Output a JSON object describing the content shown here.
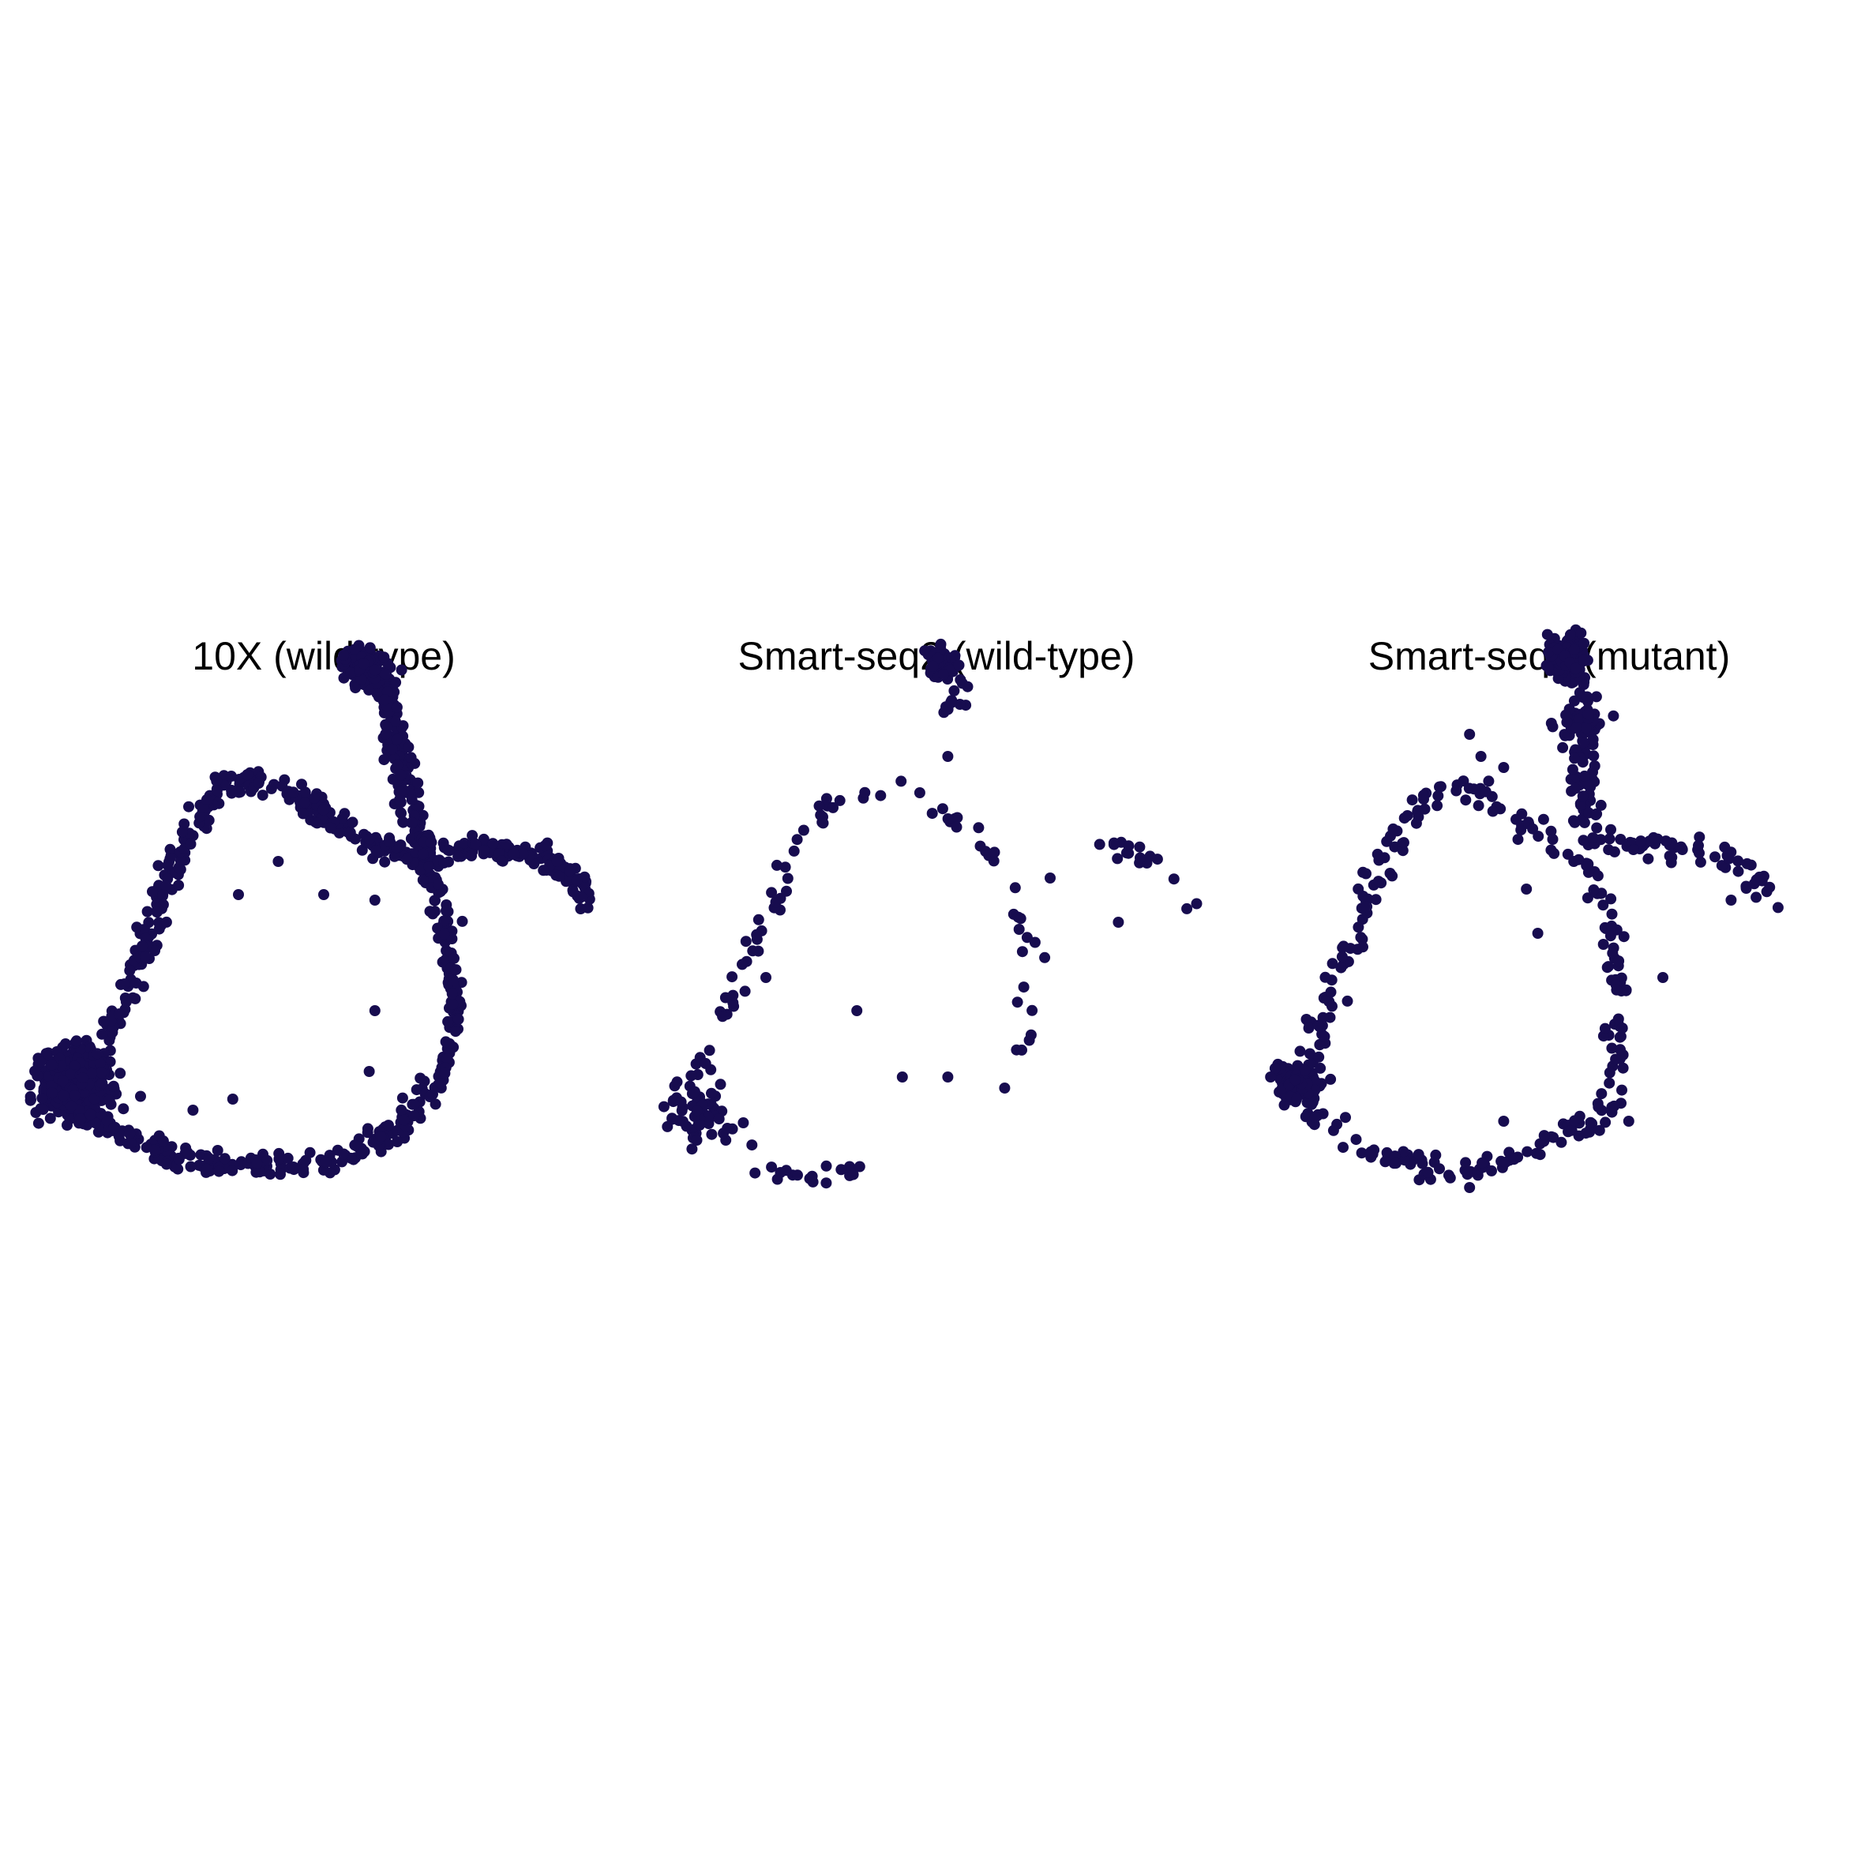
{
  "chart_data": [
    {
      "type": "scatter",
      "title": "10X (wild-type)",
      "xlim": [
        0,
        100
      ],
      "ylim": [
        0,
        100
      ],
      "grid": false,
      "axes_visible": false,
      "point_color": "#170c4f",
      "density": "high",
      "trajectory": {
        "loop": [
          [
            2,
            26
          ],
          [
            10,
            20
          ],
          [
            22,
            14
          ],
          [
            34,
            12
          ],
          [
            44,
            12
          ],
          [
            54,
            14
          ],
          [
            62,
            18
          ],
          [
            68,
            24
          ],
          [
            72,
            32
          ],
          [
            73,
            42
          ],
          [
            72,
            52
          ],
          [
            70,
            60
          ],
          [
            68,
            66
          ],
          [
            60,
            70
          ],
          [
            52,
            74
          ],
          [
            44,
            80
          ],
          [
            38,
            82
          ],
          [
            32,
            80
          ],
          [
            26,
            72
          ],
          [
            22,
            62
          ],
          [
            18,
            50
          ],
          [
            14,
            40
          ],
          [
            12,
            36
          ]
        ],
        "top_branch": [
          [
            54,
            104
          ],
          [
            59,
            103
          ],
          [
            61,
            98
          ],
          [
            62,
            90
          ],
          [
            64,
            82
          ],
          [
            66,
            74
          ],
          [
            68,
            68
          ]
        ],
        "right_branch": [
          [
            68,
            68
          ],
          [
            78,
            69
          ],
          [
            88,
            68
          ],
          [
            95,
            63
          ],
          [
            96,
            58
          ]
        ]
      },
      "clusters": [
        {
          "cx": 6,
          "cy": 27,
          "r": 5,
          "count": 520
        },
        {
          "cx": 57,
          "cy": 102,
          "r": 3,
          "count": 90
        }
      ],
      "outliers": [
        [
          35,
          61
        ],
        [
          50,
          61
        ],
        [
          59,
          60
        ],
        [
          59,
          40
        ],
        [
          58,
          29
        ],
        [
          17,
          45
        ],
        [
          34,
          24
        ],
        [
          27,
          22
        ],
        [
          42,
          67
        ]
      ]
    },
    {
      "type": "scatter",
      "title": "Smart-seq2 (wild-type)",
      "xlim": [
        0,
        100
      ],
      "ylim": [
        0,
        100
      ],
      "grid": false,
      "axes_visible": false,
      "point_color": "#170c4f",
      "density": "low",
      "trajectory": {
        "loop": [
          [
            6,
            24
          ],
          [
            12,
            18
          ],
          [
            20,
            12
          ],
          [
            28,
            10
          ],
          [
            34,
            10
          ],
          [
            36,
            12
          ]
        ],
        "left_arc": [
          [
            6,
            24
          ],
          [
            10,
            32
          ],
          [
            14,
            42
          ],
          [
            18,
            52
          ],
          [
            22,
            62
          ],
          [
            26,
            70
          ],
          [
            30,
            76
          ],
          [
            36,
            80
          ],
          [
            42,
            80
          ],
          [
            48,
            78
          ],
          [
            54,
            74
          ],
          [
            58,
            70
          ],
          [
            62,
            66
          ],
          [
            64,
            60
          ],
          [
            66,
            50
          ],
          [
            66,
            42
          ],
          [
            66,
            34
          ],
          [
            64,
            30
          ]
        ],
        "top_branch": [
          [
            48,
            104
          ],
          [
            52,
            102
          ],
          [
            54,
            98
          ],
          [
            52,
            94
          ]
        ],
        "right_branch": [
          [
            78,
            70
          ],
          [
            86,
            68
          ],
          [
            92,
            64
          ],
          [
            94,
            58
          ]
        ]
      },
      "clusters": [
        {
          "cx": 8,
          "cy": 22,
          "r": 5,
          "count": 60
        },
        {
          "cx": 51,
          "cy": 103,
          "r": 3,
          "count": 45
        }
      ],
      "outliers": [
        [
          52,
          86
        ],
        [
          70,
          64
        ],
        [
          82,
          56
        ],
        [
          36,
          40
        ],
        [
          44,
          28
        ],
        [
          52,
          28
        ],
        [
          62,
          26
        ],
        [
          20,
          46
        ]
      ]
    },
    {
      "type": "scatter",
      "title": "Smart-seq2 (mutant)",
      "xlim": [
        0,
        100
      ],
      "ylim": [
        0,
        100
      ],
      "grid": false,
      "axes_visible": false,
      "point_color": "#170c4f",
      "density": "medium",
      "trajectory": {
        "loop": [
          [
            4,
            26
          ],
          [
            10,
            20
          ],
          [
            20,
            14
          ],
          [
            30,
            11
          ],
          [
            38,
            11
          ],
          [
            46,
            14
          ],
          [
            54,
            18
          ],
          [
            60,
            22
          ],
          [
            62,
            30
          ],
          [
            62,
            40
          ],
          [
            62,
            50
          ],
          [
            60,
            58
          ],
          [
            58,
            66
          ],
          [
            52,
            70
          ],
          [
            44,
            74
          ],
          [
            36,
            80
          ],
          [
            30,
            80
          ],
          [
            24,
            74
          ],
          [
            20,
            64
          ],
          [
            16,
            54
          ],
          [
            12,
            44
          ],
          [
            8,
            34
          ]
        ],
        "top_branch": [
          [
            50,
            106
          ],
          [
            54,
            104
          ],
          [
            56,
            98
          ],
          [
            57,
            92
          ],
          [
            56,
            84
          ],
          [
            56,
            76
          ],
          [
            58,
            70
          ]
        ],
        "right_branch": [
          [
            58,
            70
          ],
          [
            70,
            70
          ],
          [
            82,
            68
          ],
          [
            88,
            62
          ],
          [
            90,
            58
          ]
        ]
      },
      "clusters": [
        {
          "cx": 6,
          "cy": 27,
          "r": 4,
          "count": 130
        },
        {
          "cx": 53,
          "cy": 104,
          "r": 3,
          "count": 150
        },
        {
          "cx": 55,
          "cy": 92,
          "r": 3,
          "count": 40
        }
      ],
      "outliers": [
        [
          42,
          84
        ],
        [
          38,
          86
        ],
        [
          36,
          90
        ],
        [
          46,
          62
        ],
        [
          48,
          54
        ],
        [
          70,
          46
        ],
        [
          82,
          60
        ],
        [
          42,
          20
        ],
        [
          36,
          8
        ],
        [
          1,
          28
        ],
        [
          64,
          20
        ]
      ]
    }
  ]
}
